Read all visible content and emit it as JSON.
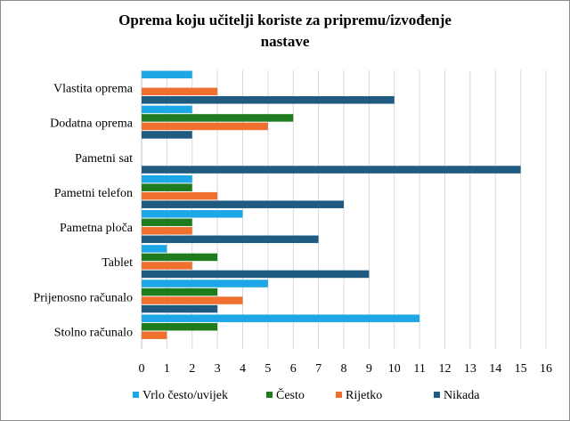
{
  "chart_data": {
    "type": "bar",
    "orientation": "horizontal",
    "title": "Oprema koju učitelji koriste za pripremu/izvođenje nastave",
    "title_lines": [
      "Oprema koju učitelji koriste za pripremu/izvođenje",
      "nastave"
    ],
    "categories": [
      "Vlastita oprema",
      "Dodatna oprema",
      "Pametni sat",
      "Pametni telefon",
      "Pametna ploča",
      "Tablet",
      "Prijenosno računalo",
      "Stolno računalo"
    ],
    "series": [
      {
        "name": "Vrlo često/uvijek",
        "color": "#1ea7e6",
        "values": [
          2,
          2,
          0,
          2,
          4,
          1,
          5,
          11
        ]
      },
      {
        "name": "Često",
        "color": "#1e7b1e",
        "values": [
          0,
          6,
          0,
          2,
          2,
          3,
          3,
          3
        ]
      },
      {
        "name": "Rijetko",
        "color": "#f07030",
        "values": [
          3,
          5,
          0,
          3,
          2,
          2,
          4,
          1
        ]
      },
      {
        "name": "Nikada",
        "color": "#1f5a80",
        "values": [
          10,
          2,
          15,
          8,
          7,
          9,
          3,
          0
        ]
      }
    ],
    "xlim": [
      0,
      16
    ],
    "xticks": [
      "0",
      "1",
      "2",
      "3",
      "4",
      "5",
      "6",
      "7",
      "8",
      "9",
      "10",
      "11",
      "12",
      "13",
      "14",
      "15",
      "16"
    ],
    "grid": true,
    "legend_position": "bottom"
  }
}
